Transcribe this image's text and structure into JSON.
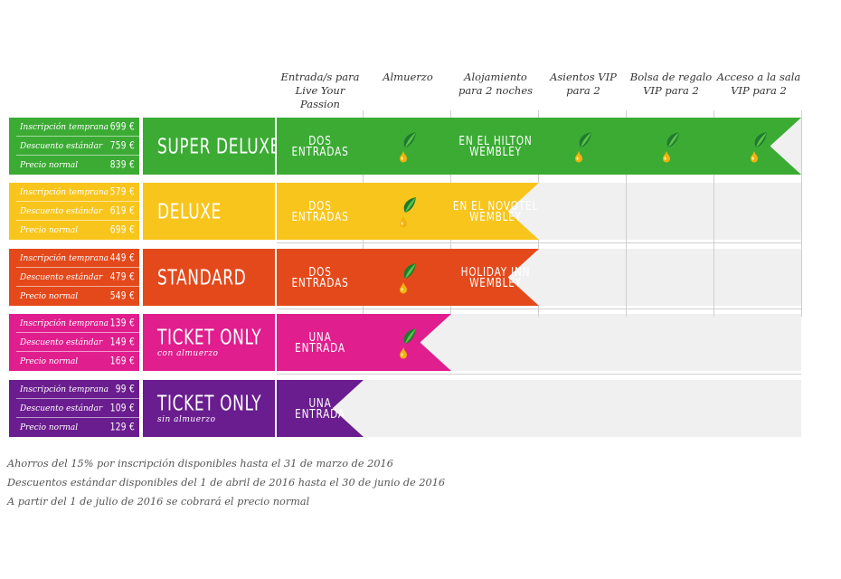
{
  "columns": [
    {
      "label_line1": "Entrada/s para",
      "label_line2": "Live Your Passion"
    },
    {
      "label_line1": "Almuerzo",
      "label_line2": ""
    },
    {
      "label_line1": "Alojamiento",
      "label_line2": "para 2 noches"
    },
    {
      "label_line1": "Asientos VIP",
      "label_line2": "para 2"
    },
    {
      "label_line1": "Bolsa de regalo",
      "label_line2": "VIP para 2"
    },
    {
      "label_line1": "Acceso a la sala",
      "label_line2": "VIP para 2"
    }
  ],
  "price_labels": {
    "early": "Inscripción temprana",
    "standard": "Descuento estándar",
    "normal": "Precio normal"
  },
  "packages": [
    {
      "name": "SUPER DELUXE",
      "sub": "",
      "color": "#3bab34",
      "early": "699 €",
      "standard": "759 €",
      "normal": "839 €",
      "tickets": [
        "DOS",
        "ENTRADAS"
      ],
      "lunch": true,
      "hotel": [
        "EN EL HILTON",
        "WEMBLEY"
      ],
      "vip_seats": true,
      "gift_bag": true,
      "vip_lounge": true
    },
    {
      "name": "DELUXE",
      "sub": "",
      "color": "#f8c51c",
      "early": "579 €",
      "standard": "619 €",
      "normal": "699 €",
      "tickets": [
        "DOS",
        "ENTRADAS"
      ],
      "lunch": true,
      "hotel": [
        "EN EL NOVOTEL",
        "WEMBLEY"
      ],
      "vip_seats": false,
      "gift_bag": false,
      "vip_lounge": false
    },
    {
      "name": "STANDARD",
      "sub": "",
      "color": "#e4491b",
      "early": "449 €",
      "standard": "479 €",
      "normal": "549 €",
      "tickets": [
        "DOS",
        "ENTRADAS"
      ],
      "lunch": true,
      "hotel": [
        "HOLIDAY INN",
        "WEMBLEY"
      ],
      "vip_seats": false,
      "gift_bag": false,
      "vip_lounge": false
    },
    {
      "name": "TICKET ONLY",
      "sub": "con almuerzo",
      "color": "#e01e8e",
      "early": "139 €",
      "standard": "149 €",
      "normal": "169 €",
      "tickets": [
        "UNA",
        "ENTRADA"
      ],
      "lunch": true,
      "hotel": [],
      "vip_seats": false,
      "gift_bag": false,
      "vip_lounge": false
    },
    {
      "name": "TICKET ONLY",
      "sub": "sin almuerzo",
      "color": "#6a1d8e",
      "early": "99 €",
      "standard": "109 €",
      "normal": "129 €",
      "tickets": [
        "UNA",
        "ENTRADA"
      ],
      "lunch": false,
      "hotel": [],
      "vip_seats": false,
      "gift_bag": false,
      "vip_lounge": false
    }
  ],
  "footnotes": [
    "Ahorros del 15% por inscripción disponibles hasta el 31 de marzo de 2016",
    "Descuentos estándar disponibles del 1 de abril de 2016 hasta el 30 de junio de 2016",
    "A partir del 1 de julio de 2016 se cobrará el precio normal"
  ],
  "icons": {
    "included": "leaf-drop-icon"
  }
}
